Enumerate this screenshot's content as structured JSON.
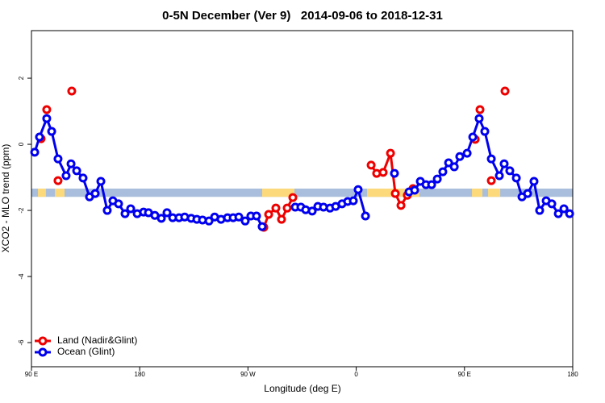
{
  "chart_data": {
    "type": "line",
    "title": "0-5N December (Ver 9)   2014-09-06 to 2018-12-31",
    "x_label": "Longitude (deg E)",
    "y_label": "XCO2 - MLO trend (ppm)",
    "xlim": [
      90,
      540
    ],
    "ylim": [
      -6.73,
      3.44
    ],
    "xticks": [
      {
        "value": 90,
        "label": "90 E"
      },
      180,
      {
        "value": 270,
        "label": "90 W"
      },
      {
        "value": 360,
        "label": "0"
      },
      {
        "value": 450,
        "label": "90 E"
      },
      {
        "value": 540,
        "label": "180"
      }
    ],
    "yticks": [
      -6,
      -4,
      -2,
      0,
      2
    ],
    "legend": "bottom-left",
    "band": {
      "y": [
        -1.59,
        -1.34
      ],
      "color": "#a9bedc",
      "land_color": "#fcd97a",
      "land": [
        [
          95.4,
          102
        ],
        [
          109.5,
          117.5
        ],
        [
          281.8,
          308.6
        ],
        [
          369,
          412.6
        ],
        [
          456.2,
          464.9
        ],
        [
          469.6,
          479.7
        ]
      ]
    },
    "series": [
      {
        "name": "Land (Nadir&Glint)",
        "color": "#ee0000",
        "x": [
          98,
          null,
          102.7,
          null,
          112.1,
          null,
          123.5,
          null,
          283.2,
          287.2,
          293.2,
          297.9,
          302.6,
          307.3,
          null,
          372.4,
          377,
          382.4,
          388.5,
          392.5,
          397.2,
          402.5,
          407.2,
          null,
          458.9,
          null,
          462.9,
          null,
          472.3,
          null,
          483.7
        ],
        "values": [
          0.17,
          null,
          1.05,
          null,
          -1.1,
          null,
          1.61,
          null,
          -2.51,
          -2.12,
          -1.93,
          -2.27,
          -1.93,
          -1.61,
          null,
          -0.63,
          -0.88,
          -0.85,
          -0.27,
          -1.49,
          -1.85,
          -1.54,
          -1.34,
          null,
          0.15,
          null,
          1.05,
          null,
          -1.1,
          null,
          1.61
        ]
      },
      {
        "name": "Ocean (Glint)",
        "color": "#0000ee",
        "x": [
          92.7,
          96.7,
          102.7,
          106.8,
          112.1,
          118.8,
          122.9,
          127.6,
          132.9,
          138.3,
          143,
          147.7,
          153,
          157.7,
          162.4,
          167.8,
          172.5,
          177.9,
          183.2,
          187.3,
          192.6,
          198,
          202.7,
          207.4,
          212.7,
          217.4,
          222.8,
          227.5,
          232.2,
          237.6,
          242.3,
          247.6,
          253,
          257.7,
          262.4,
          267.7,
          272.4,
          277.1,
          281.8,
          null,
          309.3,
          314,
          318,
          323.4,
          328.1,
          332.8,
          338.2,
          342.9,
          348.2,
          352.9,
          357.6,
          361.6,
          367.7,
          null,
          391.8,
          null,
          403.9,
          408.6,
          413.3,
          418,
          422.7,
          427.4,
          432,
          436.8,
          441.5,
          446.1,
          452.2,
          456.9,
          462.2,
          466.9,
          472.3,
          479,
          483,
          487.7,
          493.1,
          497.8,
          502.5,
          507.8,
          512.5,
          517.9,
          522.6,
          528,
          532.7,
          537.4
        ],
        "values": [
          -0.24,
          0.22,
          0.78,
          0.39,
          -0.44,
          -0.95,
          -0.59,
          -0.8,
          -1.02,
          -1.59,
          -1.49,
          -1.12,
          -2.0,
          -1.71,
          -1.8,
          -2.1,
          -1.95,
          -2.1,
          -2.05,
          -2.07,
          -2.15,
          -2.24,
          -2.07,
          -2.22,
          -2.22,
          -2.2,
          -2.24,
          -2.27,
          -2.29,
          -2.32,
          -2.2,
          -2.27,
          -2.22,
          -2.22,
          -2.2,
          -2.32,
          -2.17,
          -2.17,
          -2.49,
          null,
          -1.9,
          -1.9,
          -1.98,
          -2.02,
          -1.88,
          -1.9,
          -1.93,
          -1.88,
          -1.8,
          -1.73,
          -1.71,
          -1.37,
          -2.17,
          null,
          -0.88,
          null,
          -1.44,
          -1.39,
          -1.12,
          -1.22,
          -1.22,
          -1.05,
          -0.83,
          -0.56,
          -0.68,
          -0.37,
          -0.27,
          0.22,
          0.78,
          0.39,
          -0.44,
          -0.95,
          -0.59,
          -0.8,
          -1.02,
          -1.59,
          -1.49,
          -1.12,
          -2.0,
          -1.71,
          -1.8,
          -2.1,
          -1.95,
          -2.1
        ]
      }
    ]
  }
}
